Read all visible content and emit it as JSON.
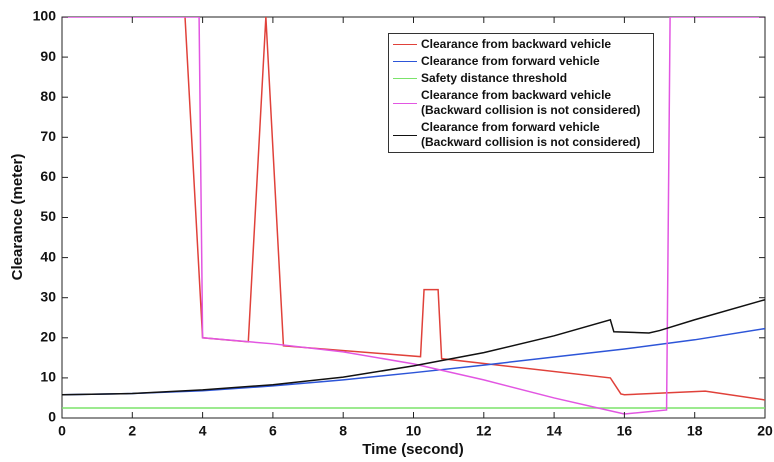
{
  "chart_data": {
    "type": "line",
    "xlabel": "Time (second)",
    "ylabel": "Clearance (meter)",
    "xlim": [
      0,
      20
    ],
    "xticks": [
      0,
      2,
      4,
      6,
      8,
      10,
      12,
      14,
      16,
      18,
      20
    ],
    "ylim": [
      0,
      100
    ],
    "yticks": [
      0,
      10,
      20,
      30,
      40,
      50,
      60,
      70,
      80,
      90,
      100
    ],
    "series": [
      {
        "name": "Clearance from backward vehicle",
        "color": "#e0413a",
        "x": [
          3.5,
          4.0,
          5.3,
          5.8,
          6.3,
          10.2,
          10.3,
          10.7,
          10.8,
          15.6,
          15.9,
          16.0,
          18.3,
          20.0
        ],
        "values": [
          100,
          20,
          19,
          100,
          18,
          15.3,
          32,
          32,
          14.8,
          10,
          6,
          5.8,
          6.7,
          4.5
        ]
      },
      {
        "name": "Clearance from forward vehicle",
        "color": "#2d55d8",
        "x": [
          0,
          2,
          4,
          6,
          8,
          10,
          12,
          14,
          16,
          18,
          20
        ],
        "values": [
          5.8,
          6.1,
          6.8,
          8,
          9.5,
          11.3,
          13.2,
          15.2,
          17.2,
          19.5,
          22.3
        ]
      },
      {
        "name": "Safety distance threshold",
        "color": "#7be36a",
        "x": [
          0,
          20
        ],
        "values": [
          2.5,
          2.5
        ]
      },
      {
        "name": "Clearance from backward vehicle\n(Backward collision is not considered)",
        "color": "#e256e2",
        "x": [
          0,
          3.9,
          4.0,
          6,
          8,
          10,
          12,
          14,
          15.5,
          16.0,
          17.2,
          17.3,
          20
        ],
        "values": [
          100,
          100,
          20,
          18.5,
          16.5,
          13.5,
          9.5,
          5,
          2,
          1,
          2,
          100,
          100
        ]
      },
      {
        "name": "Clearance from forward vehicle\n(Backward collision is not considered)",
        "color": "#111111",
        "x": [
          0,
          2,
          4,
          6,
          8,
          10,
          12,
          14,
          15.6,
          15.7,
          16.7,
          17,
          18,
          20
        ],
        "values": [
          5.8,
          6.1,
          7,
          8.3,
          10.2,
          13,
          16.3,
          20.5,
          24.5,
          21.5,
          21.2,
          21.8,
          24.5,
          29.5
        ]
      }
    ]
  }
}
